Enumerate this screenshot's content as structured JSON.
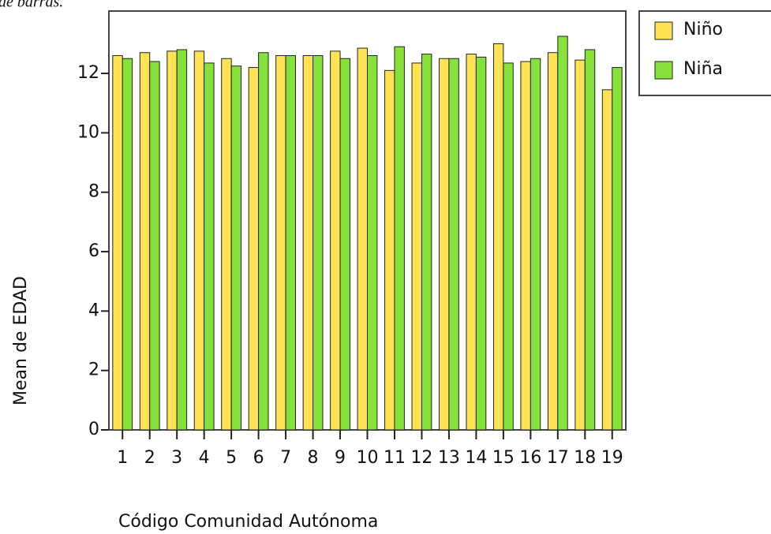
{
  "chart_data": {
    "type": "bar",
    "caption": "de barras.",
    "x_label": "Código Comunidad Autónoma",
    "y_label": "Mean de EDAD",
    "categories": [
      "1",
      "2",
      "3",
      "4",
      "5",
      "6",
      "7",
      "8",
      "9",
      "10",
      "11",
      "12",
      "13",
      "14",
      "15",
      "16",
      "17",
      "18",
      "19"
    ],
    "series": [
      {
        "name": "Niño",
        "color": "#ffe354",
        "values": [
          12.6,
          12.7,
          12.75,
          12.75,
          12.5,
          12.2,
          12.6,
          12.6,
          12.75,
          12.85,
          12.1,
          12.35,
          12.5,
          12.65,
          13.0,
          12.4,
          12.7,
          12.45,
          11.45
        ]
      },
      {
        "name": "Niña",
        "color": "#86e23a",
        "values": [
          12.5,
          12.4,
          12.8,
          12.35,
          12.25,
          12.7,
          12.6,
          12.6,
          12.5,
          12.6,
          12.9,
          12.65,
          12.5,
          12.55,
          12.35,
          12.5,
          13.25,
          12.8,
          12.2
        ]
      }
    ],
    "ylim": [
      0,
      14.1
    ],
    "yticks": [
      0,
      2,
      4,
      6,
      8,
      10,
      12
    ],
    "legend": "outside-right"
  }
}
